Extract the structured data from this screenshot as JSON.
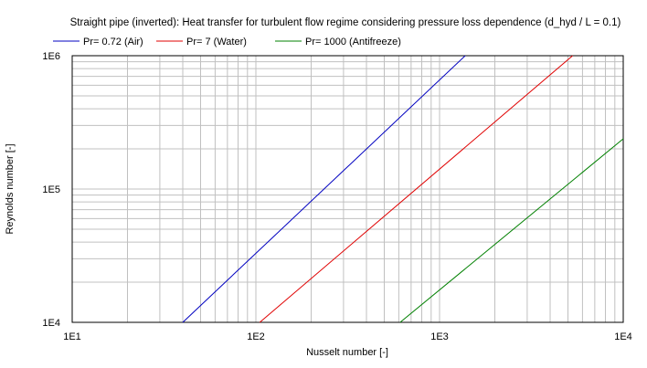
{
  "chart_data": {
    "type": "line",
    "title": "Straight pipe (inverted): Heat transfer for turbulent flow regime considering pressure loss dependence (d_hyd / L = 0.1)",
    "xlabel": "Nusselt number [-]",
    "ylabel": "Reynolds number [-]",
    "xscale": "log",
    "yscale": "log",
    "xlim": [
      10,
      10000
    ],
    "ylim": [
      10000,
      1000000
    ],
    "x_ticks": [
      "1E1",
      "1E2",
      "1E3",
      "1E4"
    ],
    "y_ticks": [
      "1E4",
      "1E5",
      "1E6"
    ],
    "grid": true,
    "legend_position": "top",
    "series": [
      {
        "name": "Pr= 0.72 (Air)",
        "color": "#0000c0",
        "x": [
          40,
          1380
        ],
        "y": [
          10000,
          1000000
        ]
      },
      {
        "name": "Pr= 7 (Water)",
        "color": "#e00000",
        "x": [
          105,
          5300
        ],
        "y": [
          10000,
          1000000
        ]
      },
      {
        "name": "Pr= 1000 (Antifreeze)",
        "color": "#008000",
        "x": [
          610,
          10000
        ],
        "y": [
          10000,
          238000
        ]
      }
    ]
  }
}
